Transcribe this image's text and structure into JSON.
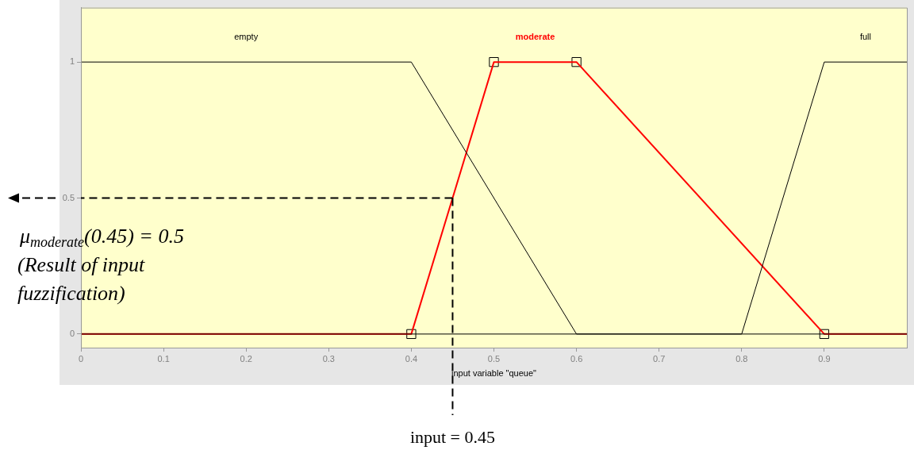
{
  "chart_data": {
    "type": "line",
    "xlabel": "input variable \"queue\"",
    "xlim": [
      0,
      1
    ],
    "xticks": [
      0,
      0.1,
      0.2,
      0.3,
      0.4,
      0.5,
      0.6,
      0.7,
      0.8,
      0.9
    ],
    "ylim": [
      -0.05,
      1.2
    ],
    "yticks": [
      0,
      0.5,
      1
    ],
    "grid": false,
    "legend": false,
    "series": [
      {
        "name": "empty",
        "color": "#000000",
        "x": [
          0,
          0.4,
          0.6,
          1
        ],
        "values": [
          1,
          1,
          0,
          0
        ]
      },
      {
        "name": "full",
        "color": "#000000",
        "x": [
          0,
          0.8,
          0.9,
          1
        ],
        "values": [
          0,
          0,
          1,
          1
        ]
      },
      {
        "name": "moderate",
        "color": "#ff0000",
        "x": [
          0,
          0.4,
          0.5,
          0.6,
          0.9,
          1
        ],
        "values": [
          0,
          0,
          1,
          1,
          0,
          0
        ]
      },
      {
        "type": "scatter",
        "marker": "square",
        "color": "#000000",
        "x": [
          0.4,
          0.5,
          0.6,
          0.9
        ],
        "values": [
          0,
          1,
          1,
          0
        ]
      }
    ],
    "annotations": [
      {
        "text": "μ$_{moderate}$(0.45) = 0.5",
        "x": 0.45,
        "y": 0.5
      },
      "(Result of input fuzzification)",
      {
        "text": "input = 0.45",
        "x": 0.45,
        "y": 0.5
      }
    ]
  }
}
